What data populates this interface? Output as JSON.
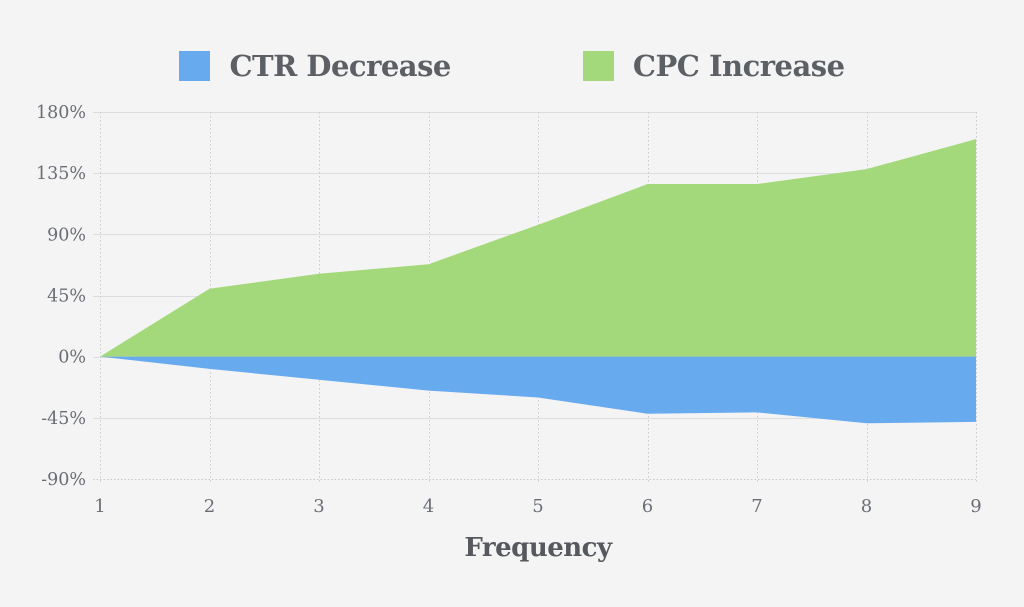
{
  "page": {
    "background_color": "#f4f4f5",
    "text_color": "#5c6065",
    "gridline_color": "#dcdde0",
    "dotted_gridline_color": "#c9cace"
  },
  "legend": {
    "items": [
      {
        "label": "CTR Decrease",
        "color": "#68aaee"
      },
      {
        "label": "CPC Increase",
        "color": "#a3d97a"
      }
    ]
  },
  "chart_data": {
    "type": "area",
    "x": [
      1,
      2,
      3,
      4,
      5,
      6,
      7,
      8,
      9
    ],
    "xtick_labels": [
      "1",
      "2",
      "3",
      "4",
      "5",
      "6",
      "7",
      "8",
      "9"
    ],
    "xlabel": "Frequency",
    "series": [
      {
        "name": "CTR Decrease",
        "color": "#68aaee",
        "values": [
          0,
          -9,
          -17,
          -25,
          -30,
          -42,
          -41,
          -49,
          -48
        ]
      },
      {
        "name": "CPC Increase",
        "color": "#a3d97a",
        "values": [
          0,
          50,
          61,
          68,
          97,
          127,
          127,
          138,
          160
        ]
      }
    ],
    "ylim": [
      -90,
      180
    ],
    "yticks": [
      180,
      135,
      90,
      45,
      0,
      -45,
      -90
    ],
    "ytick_labels": [
      "180%",
      "135%",
      "90%",
      "45%",
      "0%",
      "-45%",
      "-90%"
    ],
    "unit": "%",
    "grid": true,
    "legend_position": "top-center",
    "baseline": 0
  }
}
